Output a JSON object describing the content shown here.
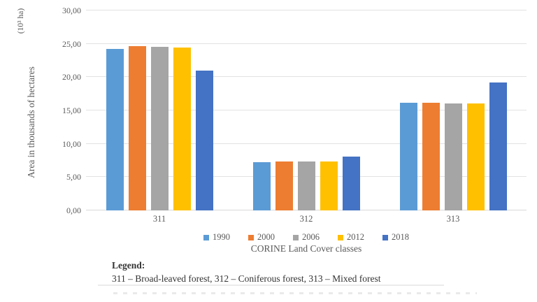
{
  "figure": {
    "unit_label": "(10³ ha)",
    "caption_label": "Legend:",
    "caption_text": "311 – Broad-leaved forest, 312 – Coniferous forest, 313 – Mixed forest"
  },
  "chart_data": {
    "type": "bar",
    "categories": [
      "311",
      "312",
      "313"
    ],
    "series": [
      {
        "name": "1990",
        "color": "#5B9BD5",
        "values": [
          24.2,
          7.2,
          16.2
        ]
      },
      {
        "name": "2000",
        "color": "#ED7D31",
        "values": [
          24.6,
          7.3,
          16.2
        ]
      },
      {
        "name": "2006",
        "color": "#A5A5A5",
        "values": [
          24.5,
          7.3,
          16.1
        ]
      },
      {
        "name": "2012",
        "color": "#FFC000",
        "values": [
          24.4,
          7.3,
          16.1
        ]
      },
      {
        "name": "2018",
        "color": "#4472C4",
        "values": [
          21.0,
          8.1,
          19.2
        ]
      }
    ],
    "title": "",
    "xlabel": "CORINE Land Cover classes",
    "ylabel": "Area in thousands of hectares",
    "ylim": [
      0,
      30
    ],
    "ytick_step": 5,
    "y_tick_labels": [
      "0,00",
      "5,00",
      "10,00",
      "15,00",
      "20,00",
      "25,00",
      "30,00"
    ],
    "grid": true,
    "legend_position": "bottom",
    "gridline_color": "#E2E2E2",
    "axis_line_color": "#D9D9D9",
    "text_color": "#595959"
  }
}
